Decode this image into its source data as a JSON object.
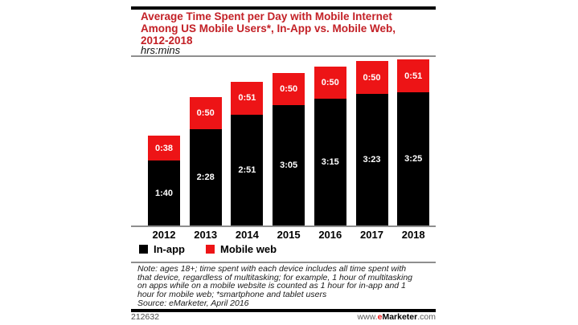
{
  "header": {
    "title_lines": "Average Time Spent per Day with Mobile Internet\nAmong US Mobile Users*, In-App vs. Mobile Web,\n2012-2018",
    "units": "hrs:mins"
  },
  "chart_data": {
    "type": "bar",
    "stacked": true,
    "title": "Average Time Spent per Day with Mobile Internet Among US Mobile Users*, In-App vs. Mobile Web, 2012-2018",
    "units": "hrs:mins",
    "categories": [
      "2012",
      "2013",
      "2014",
      "2015",
      "2016",
      "2017",
      "2018"
    ],
    "series": [
      {
        "name": "In-app",
        "color": "#000000",
        "values_hhmm": [
          "1:40",
          "2:28",
          "2:51",
          "3:05",
          "3:15",
          "3:23",
          "3:25"
        ],
        "values_minutes": [
          100,
          148,
          171,
          185,
          195,
          203,
          205
        ]
      },
      {
        "name": "Mobile web",
        "color": "#ED1416",
        "values_hhmm": [
          "0:38",
          "0:50",
          "0:51",
          "0:50",
          "0:50",
          "0:50",
          "0:51"
        ],
        "values_minutes": [
          38,
          50,
          51,
          50,
          50,
          50,
          51
        ]
      }
    ],
    "totals_hhmm": [
      "2:18",
      "3:18",
      "3:42",
      "3:55",
      "4:05",
      "4:13",
      "4:16"
    ],
    "legend_position": "bottom",
    "grid": false,
    "value_labels": "inside segments, white bold hh:mm"
  },
  "note": {
    "text": "Note: ages 18+; time spent with each device includes all time spent with\nthat device, regardless of multitasking; for example, 1 hour of multitasking\non apps while on a mobile website is counted as 1 hour for in-app and 1\nhour for mobile web; *smartphone and tablet users\nSource: eMarketer, April 2016"
  },
  "footer": {
    "chart_id": "212632",
    "site_prefix": "www.",
    "site_e": "e",
    "site_name": "Marketer",
    "site_suffix": ".com"
  },
  "colors": {
    "title_red": "#C32026",
    "bar_red": "#ED1416",
    "bar_black": "#000000",
    "rule_gray": "#8E8E8E"
  }
}
